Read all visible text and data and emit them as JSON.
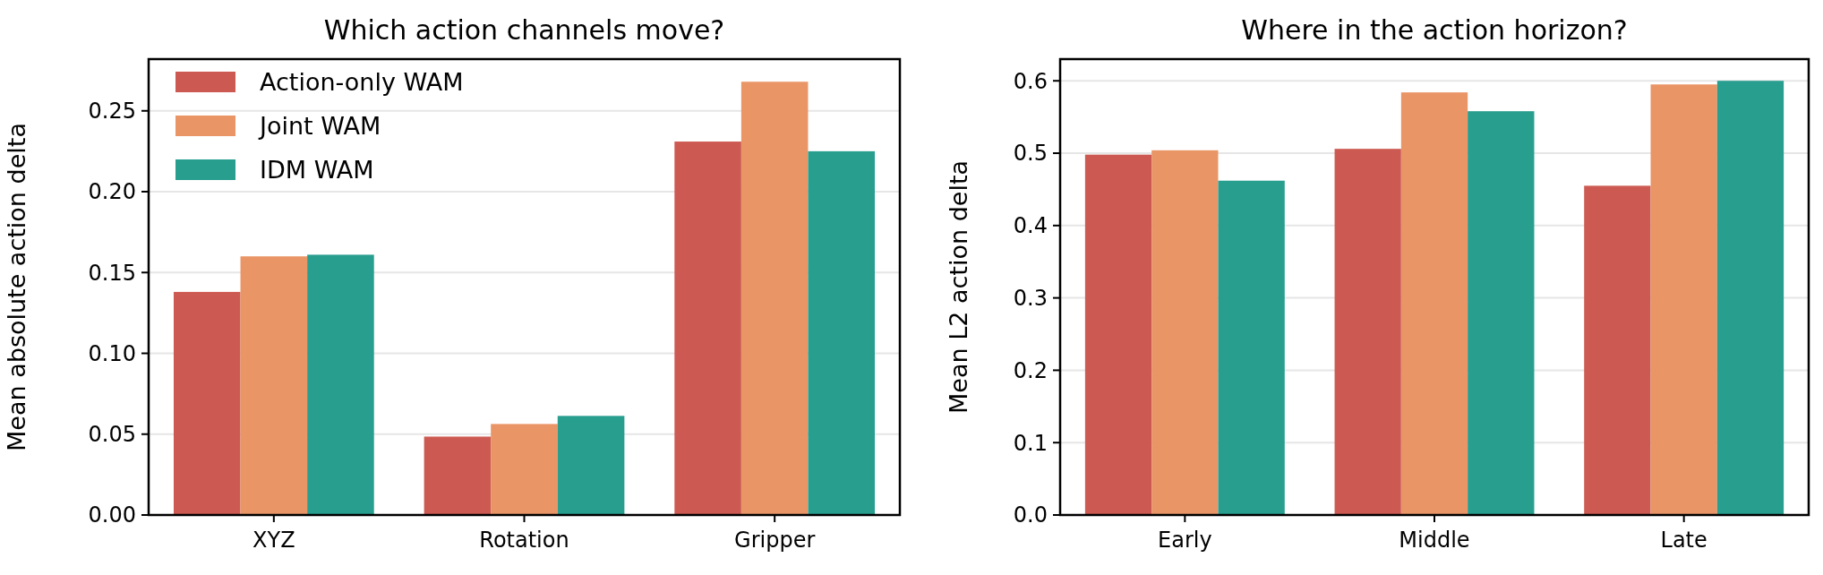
{
  "chart_data": [
    {
      "type": "bar",
      "title": "Which action channels move?",
      "ylabel": "Mean absolute action delta",
      "categories": [
        "XYZ",
        "Rotation",
        "Gripper"
      ],
      "series": [
        {
          "name": "Action-only WAM",
          "color": "#cd5a52",
          "values": [
            0.138,
            0.0485,
            0.231
          ]
        },
        {
          "name": "Joint WAM",
          "color": "#e99566",
          "values": [
            0.16,
            0.0563,
            0.268
          ]
        },
        {
          "name": "IDM WAM",
          "color": "#289e8f",
          "values": [
            0.161,
            0.0613,
            0.225
          ]
        }
      ],
      "ylim": [
        0,
        0.282
      ],
      "yticks": [
        {
          "value": 0,
          "label": "0.00"
        },
        {
          "value": 0.05,
          "label": "0.05"
        },
        {
          "value": 0.1,
          "label": "0.10"
        },
        {
          "value": 0.15,
          "label": "0.15"
        },
        {
          "value": 0.2,
          "label": "0.20"
        },
        {
          "value": 0.25,
          "label": "0.25"
        }
      ],
      "grid": "y",
      "legend": "top left"
    },
    {
      "type": "bar",
      "title": "Where in the action horizon?",
      "ylabel": "Mean L2 action delta",
      "categories": [
        "Early",
        "Middle",
        "Late"
      ],
      "series": [
        {
          "color": "#cd5a52",
          "values": [
            0.498,
            0.506,
            0.455
          ]
        },
        {
          "color": "#e99566",
          "values": [
            0.504,
            0.584,
            0.595
          ]
        },
        {
          "color": "#289e8f",
          "values": [
            0.462,
            0.558,
            0.6
          ]
        }
      ],
      "ylim": [
        0,
        0.63
      ],
      "yticks": [
        {
          "value": 0,
          "label": "0.0"
        },
        {
          "value": 0.1,
          "label": "0.1"
        },
        {
          "value": 0.2,
          "label": "0.2"
        },
        {
          "value": 0.3,
          "label": "0.3"
        },
        {
          "value": 0.4,
          "label": "0.4"
        },
        {
          "value": 0.5,
          "label": "0.5"
        },
        {
          "value": 0.6,
          "label": "0.6"
        }
      ],
      "grid": "y"
    }
  ]
}
